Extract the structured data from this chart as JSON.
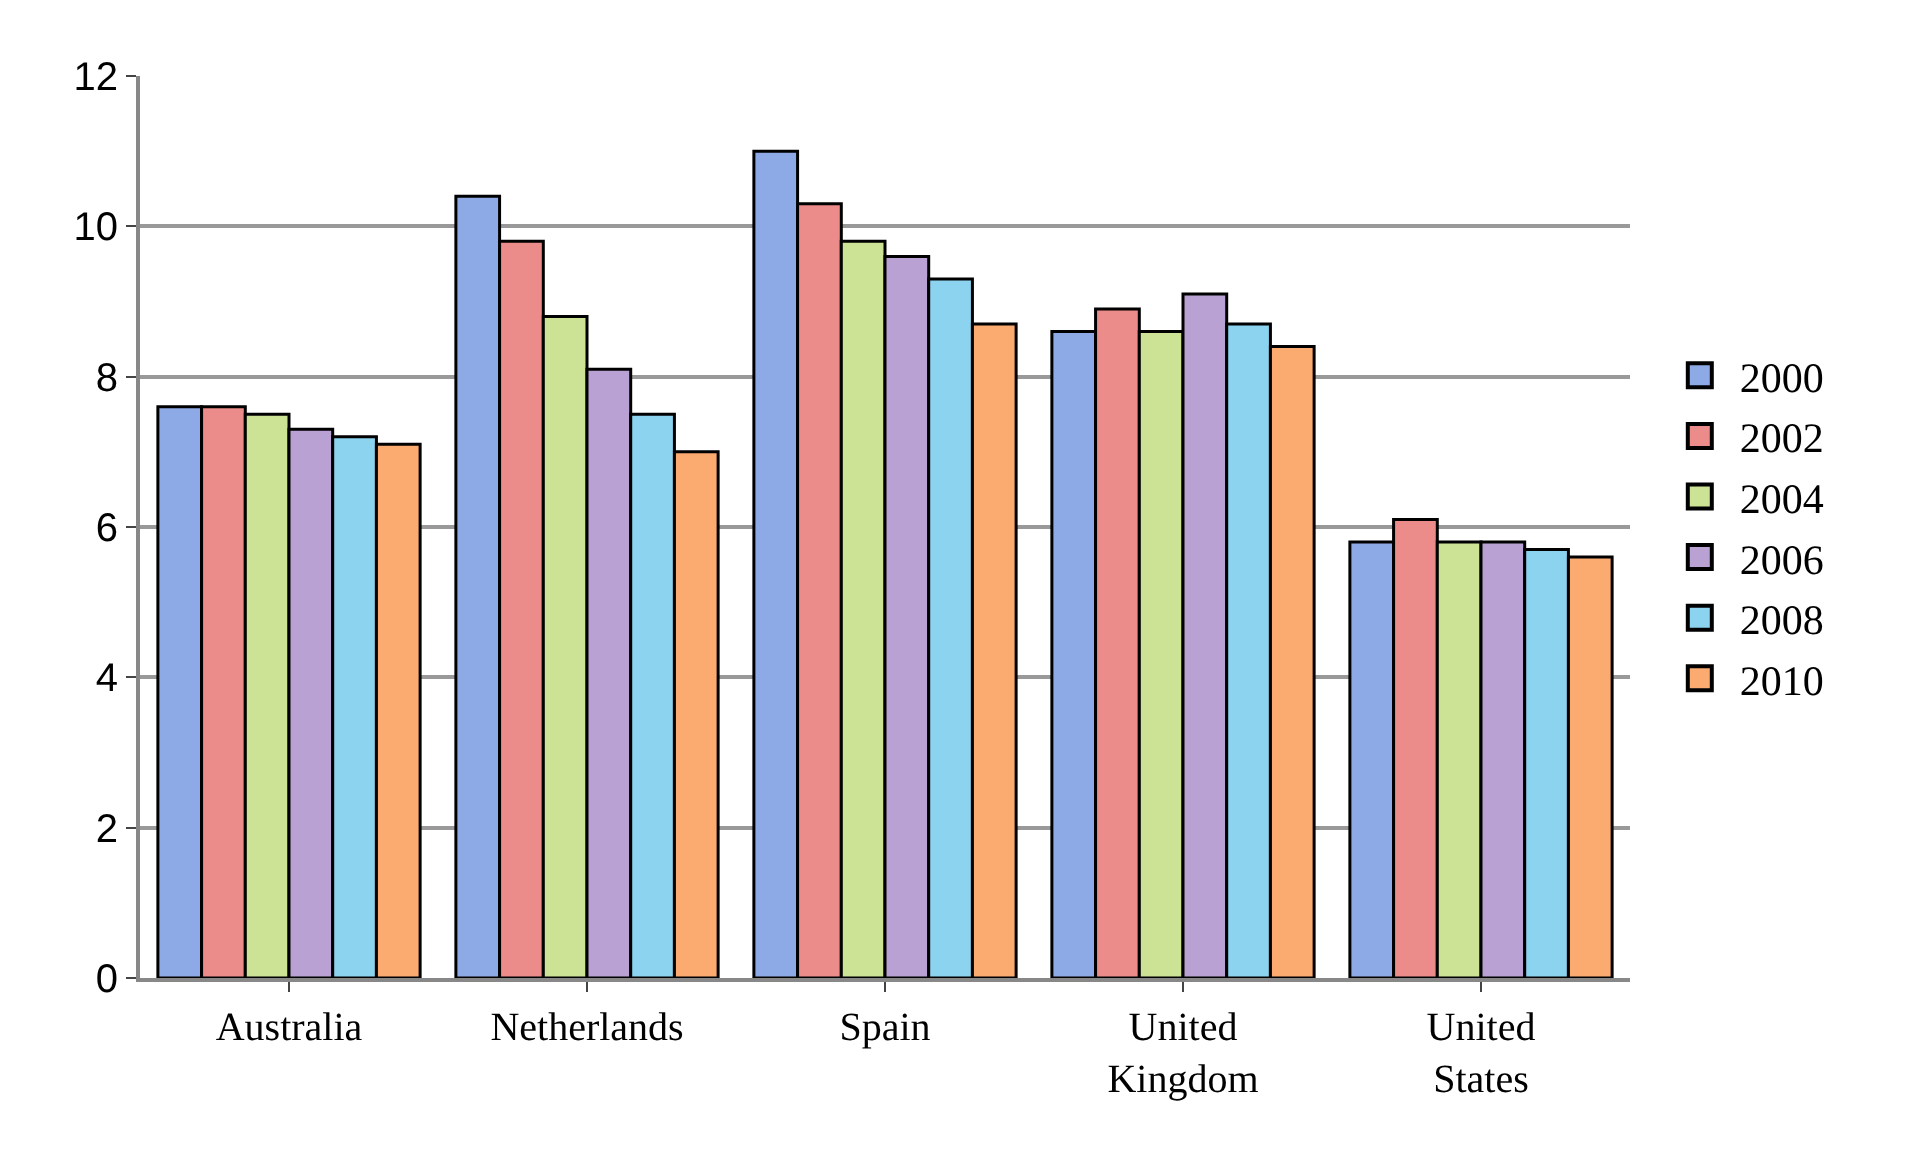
{
  "chart_data": {
    "type": "bar",
    "categories": [
      "Australia",
      "Netherlands",
      "Spain",
      "United Kingdom",
      "United States"
    ],
    "series": [
      {
        "name": "2000",
        "color": "#8eaae6",
        "values": [
          7.6,
          10.4,
          11.0,
          8.6,
          5.8
        ]
      },
      {
        "name": "2002",
        "color": "#ec8c8a",
        "values": [
          7.6,
          9.8,
          10.3,
          8.9,
          6.1
        ]
      },
      {
        "name": "2004",
        "color": "#cce396",
        "values": [
          7.5,
          8.8,
          9.8,
          8.6,
          5.8
        ]
      },
      {
        "name": "2006",
        "color": "#b9a2d3",
        "values": [
          7.3,
          8.1,
          9.6,
          9.1,
          5.8
        ]
      },
      {
        "name": "2008",
        "color": "#8bd3ef",
        "values": [
          7.2,
          7.5,
          9.3,
          8.7,
          5.7
        ]
      },
      {
        "name": "2010",
        "color": "#fbaa70",
        "values": [
          7.1,
          7.0,
          8.7,
          8.4,
          5.6
        ]
      }
    ],
    "ylim": [
      0,
      12
    ],
    "yticks": [
      0,
      2,
      4,
      6,
      8,
      10,
      12
    ],
    "grid": "y",
    "legend": "right"
  }
}
